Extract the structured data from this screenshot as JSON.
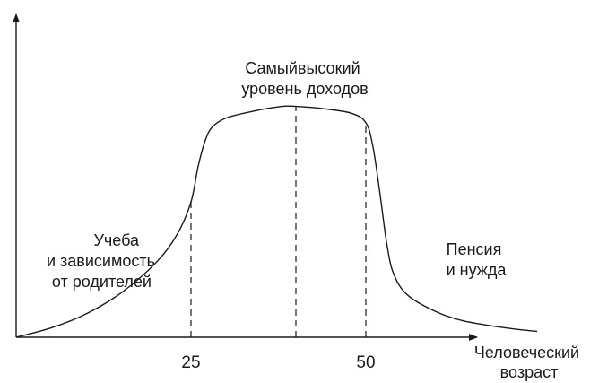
{
  "chart_data": {
    "type": "line",
    "title": "",
    "xlabel": [
      "Человеческий",
      "возраст"
    ],
    "ylabel": "",
    "x_ticks": [
      {
        "value": 25,
        "label": "25"
      },
      {
        "value": 50,
        "label": "50"
      }
    ],
    "series": [
      {
        "x": [
          0,
          5,
          10,
          15,
          20,
          23,
          25,
          26,
          27,
          28,
          30,
          34,
          38,
          40,
          44,
          48,
          50,
          51,
          52,
          53,
          54,
          56,
          60,
          64,
          70,
          74.5
        ],
        "values": [
          0.0,
          0.04,
          0.1,
          0.19,
          0.32,
          0.44,
          0.58,
          0.73,
          0.84,
          0.9,
          0.94,
          0.97,
          0.99,
          0.99,
          0.98,
          0.96,
          0.92,
          0.82,
          0.62,
          0.4,
          0.27,
          0.18,
          0.11,
          0.07,
          0.04,
          0.025
        ]
      }
    ],
    "guides": [
      25,
      40,
      50
    ],
    "annotations": [
      {
        "id": "study",
        "lines": [
          "Учеба",
          "и зависимость",
          "от родителей"
        ]
      },
      {
        "id": "peak",
        "lines": [
          "Самыйвысокий",
          "уровень доходов"
        ]
      },
      {
        "id": "pension",
        "lines": [
          "Пенсия",
          "и нужда"
        ]
      }
    ]
  }
}
